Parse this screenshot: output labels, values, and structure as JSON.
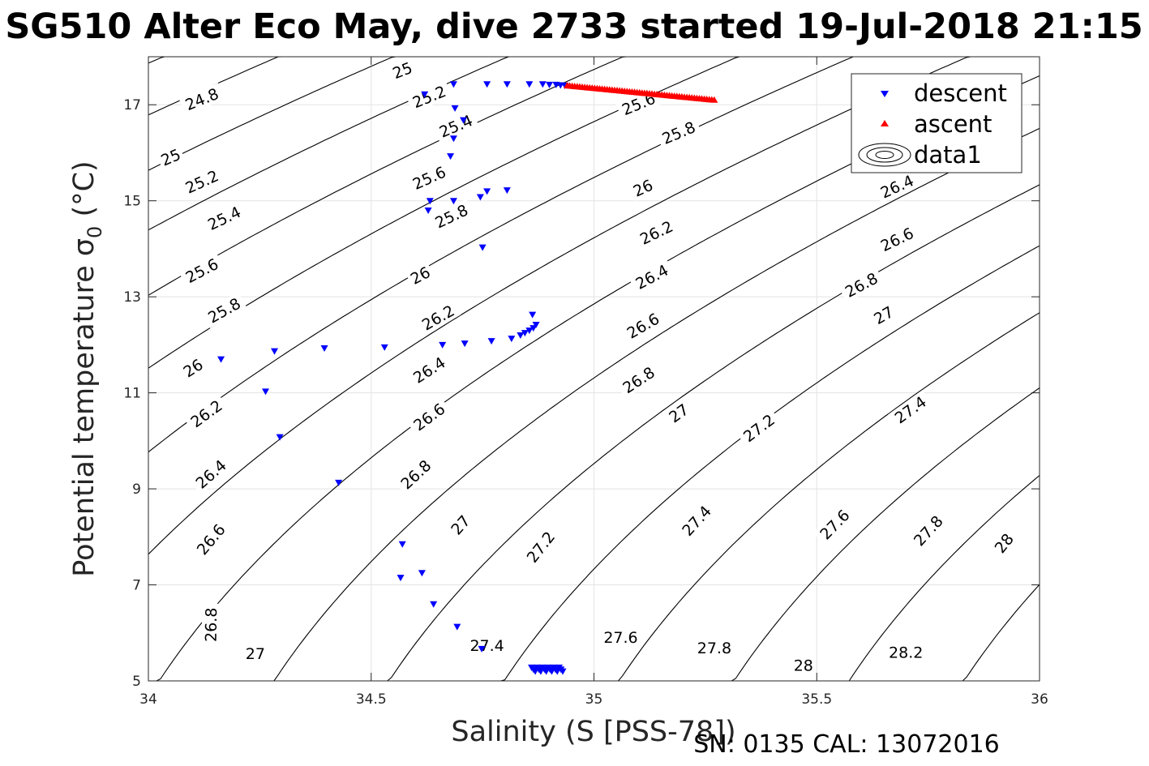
{
  "chart_data": {
    "type": "scatter",
    "title": "SG510 Alter Eco May, dive 2733 started 19-Jul-2018 21:15",
    "xlabel": "Salinity (S [PSS-78])",
    "ylabel": "Potential temperature σ",
    "ylabel_subscript": "0",
    "ylabel_unit": " (°C)",
    "xlim": [
      34,
      36
    ],
    "ylim": [
      5,
      18
    ],
    "x_ticks": [
      "34",
      "34.5",
      "35",
      "35.5",
      "36"
    ],
    "x_tick_values": [
      34,
      34.5,
      35,
      35.5,
      36
    ],
    "y_ticks": [
      "5",
      "7",
      "9",
      "11",
      "13",
      "15",
      "17"
    ],
    "y_tick_values": [
      5,
      7,
      9,
      11,
      13,
      15,
      17
    ],
    "grid": true,
    "legend": {
      "placement": "top-right",
      "entries": [
        "descent",
        "ascent",
        "data1"
      ]
    },
    "series": [
      {
        "name": "descent",
        "marker": "triangle-down",
        "color": "#0000ff",
        "points": [
          [
            34.163,
            11.7
          ],
          [
            34.283,
            11.87
          ],
          [
            34.263,
            11.03
          ],
          [
            34.295,
            10.08
          ],
          [
            34.395,
            11.93
          ],
          [
            34.427,
            9.13
          ],
          [
            34.53,
            11.95
          ],
          [
            34.566,
            7.15
          ],
          [
            34.57,
            7.85
          ],
          [
            34.614,
            7.25
          ],
          [
            34.64,
            6.6
          ],
          [
            34.66,
            12.0
          ],
          [
            34.693,
            6.13
          ],
          [
            34.71,
            12.03
          ],
          [
            34.748,
            5.67
          ],
          [
            34.77,
            12.08
          ],
          [
            34.815,
            12.13
          ],
          [
            34.835,
            12.2
          ],
          [
            34.845,
            12.25
          ],
          [
            34.855,
            12.3
          ],
          [
            34.862,
            12.63
          ],
          [
            34.864,
            12.35
          ],
          [
            34.87,
            12.42
          ],
          [
            34.62,
            17.22
          ],
          [
            34.685,
            17.43
          ],
          [
            34.76,
            17.43
          ],
          [
            34.805,
            17.43
          ],
          [
            34.855,
            17.43
          ],
          [
            34.885,
            17.43
          ],
          [
            34.9,
            17.42
          ],
          [
            34.915,
            17.42
          ],
          [
            34.925,
            17.41
          ],
          [
            34.935,
            17.4
          ],
          [
            34.688,
            16.93
          ],
          [
            34.707,
            16.68
          ],
          [
            34.685,
            16.3
          ],
          [
            34.678,
            15.93
          ],
          [
            34.632,
            15.0
          ],
          [
            34.628,
            14.8
          ],
          [
            34.685,
            15.0
          ],
          [
            34.745,
            15.08
          ],
          [
            34.76,
            15.2
          ],
          [
            34.805,
            15.22
          ],
          [
            34.75,
            14.03
          ]
        ],
        "deep_cluster": {
          "x_range": [
            34.86,
            34.93
          ],
          "y_range": [
            5.2,
            5.28
          ],
          "count": 18
        }
      },
      {
        "name": "ascent",
        "marker": "triangle-up",
        "color": "#ff0000",
        "x_range": [
          34.94,
          35.27
        ],
        "y_range": [
          17.4,
          17.1
        ],
        "count": 60
      },
      {
        "name": "data1",
        "type": "contour",
        "color": "#000000"
      }
    ],
    "contours": [
      {
        "level": 24.8,
        "label": "24.8"
      },
      {
        "level": 25.0,
        "label": "25"
      },
      {
        "level": 25.2,
        "label": "25.2"
      },
      {
        "level": 25.4,
        "label": "25.4"
      },
      {
        "level": 25.6,
        "label": "25.6"
      },
      {
        "level": 25.8,
        "label": "25.8"
      },
      {
        "level": 26.0,
        "label": "26"
      },
      {
        "level": 26.2,
        "label": "26.2"
      },
      {
        "level": 26.4,
        "label": "26.4"
      },
      {
        "level": 26.6,
        "label": "26.6"
      },
      {
        "level": 26.8,
        "label": "26.8"
      },
      {
        "level": 27.0,
        "label": "27"
      },
      {
        "level": 27.2,
        "label": "27.2"
      },
      {
        "level": 27.4,
        "label": "27.4"
      },
      {
        "level": 27.6,
        "label": "27.6"
      },
      {
        "level": 27.8,
        "label": "27.8"
      },
      {
        "level": 28.0,
        "label": "28"
      },
      {
        "level": 28.2,
        "label": "28.2"
      }
    ],
    "contour_label_sites": [
      {
        "level": 25.0,
        "x": 34.57,
        "y": 17.72
      },
      {
        "level": 24.8,
        "x": 34.12,
        "y": 17.12
      },
      {
        "level": 25.2,
        "x": 34.63,
        "y": 17.17
      },
      {
        "level": 25.6,
        "x": 35.1,
        "y": 17.02
      },
      {
        "level": 25.0,
        "x": 34.05,
        "y": 15.91
      },
      {
        "level": 25.4,
        "x": 34.69,
        "y": 16.56
      },
      {
        "level": 25.8,
        "x": 35.19,
        "y": 16.42
      },
      {
        "level": 25.2,
        "x": 34.12,
        "y": 15.4
      },
      {
        "level": 25.6,
        "x": 34.63,
        "y": 15.48
      },
      {
        "level": 26.0,
        "x": 35.11,
        "y": 15.27
      },
      {
        "level": 26.4,
        "x": 35.68,
        "y": 15.3
      },
      {
        "level": 25.4,
        "x": 34.17,
        "y": 14.64
      },
      {
        "level": 25.8,
        "x": 34.68,
        "y": 14.68
      },
      {
        "level": 26.2,
        "x": 35.14,
        "y": 14.34
      },
      {
        "level": 26.6,
        "x": 35.68,
        "y": 14.2
      },
      {
        "level": 25.6,
        "x": 34.12,
        "y": 13.55
      },
      {
        "level": 26.0,
        "x": 34.61,
        "y": 13.45
      },
      {
        "level": 26.4,
        "x": 35.13,
        "y": 13.42
      },
      {
        "level": 26.8,
        "x": 35.6,
        "y": 13.25
      },
      {
        "level": 25.8,
        "x": 34.17,
        "y": 12.72
      },
      {
        "level": 26.2,
        "x": 34.65,
        "y": 12.57
      },
      {
        "level": 26.6,
        "x": 35.11,
        "y": 12.4
      },
      {
        "level": 27.0,
        "x": 35.65,
        "y": 12.62
      },
      {
        "level": 27.2,
        "x": 36.05,
        "y": 12.36
      },
      {
        "level": 26.0,
        "x": 34.1,
        "y": 11.52
      },
      {
        "level": 26.4,
        "x": 34.63,
        "y": 11.48
      },
      {
        "level": 26.8,
        "x": 35.1,
        "y": 11.27
      },
      {
        "level": 26.2,
        "x": 34.13,
        "y": 10.57
      },
      {
        "level": 26.6,
        "x": 34.63,
        "y": 10.5
      },
      {
        "level": 27.0,
        "x": 35.19,
        "y": 10.58
      },
      {
        "level": 27.2,
        "x": 35.37,
        "y": 10.27
      },
      {
        "level": 27.4,
        "x": 35.71,
        "y": 10.65
      },
      {
        "level": 26.4,
        "x": 34.14,
        "y": 9.31
      },
      {
        "level": 26.8,
        "x": 34.6,
        "y": 9.3
      },
      {
        "level": 27.0,
        "x": 34.7,
        "y": 8.25
      },
      {
        "level": 27.2,
        "x": 34.88,
        "y": 7.79
      },
      {
        "level": 27.4,
        "x": 35.23,
        "y": 8.34
      },
      {
        "level": 27.6,
        "x": 35.54,
        "y": 8.26
      },
      {
        "level": 27.8,
        "x": 35.75,
        "y": 8.13
      },
      {
        "level": 28.0,
        "x": 35.92,
        "y": 7.87
      },
      {
        "level": 26.6,
        "x": 34.14,
        "y": 7.95
      },
      {
        "level": 26.8,
        "x": 34.14,
        "y": 6.17
      },
      {
        "level": 27.0,
        "x": 34.24,
        "y": 5.57
      },
      {
        "level": 27.4,
        "x": 34.76,
        "y": 5.74
      },
      {
        "level": 27.6,
        "x": 35.06,
        "y": 5.91
      },
      {
        "level": 27.8,
        "x": 35.27,
        "y": 5.69
      },
      {
        "level": 28.0,
        "x": 35.47,
        "y": 5.33
      },
      {
        "level": 28.2,
        "x": 35.7,
        "y": 5.6
      }
    ]
  },
  "footer": "SN: 0135  CAL: 13072016"
}
